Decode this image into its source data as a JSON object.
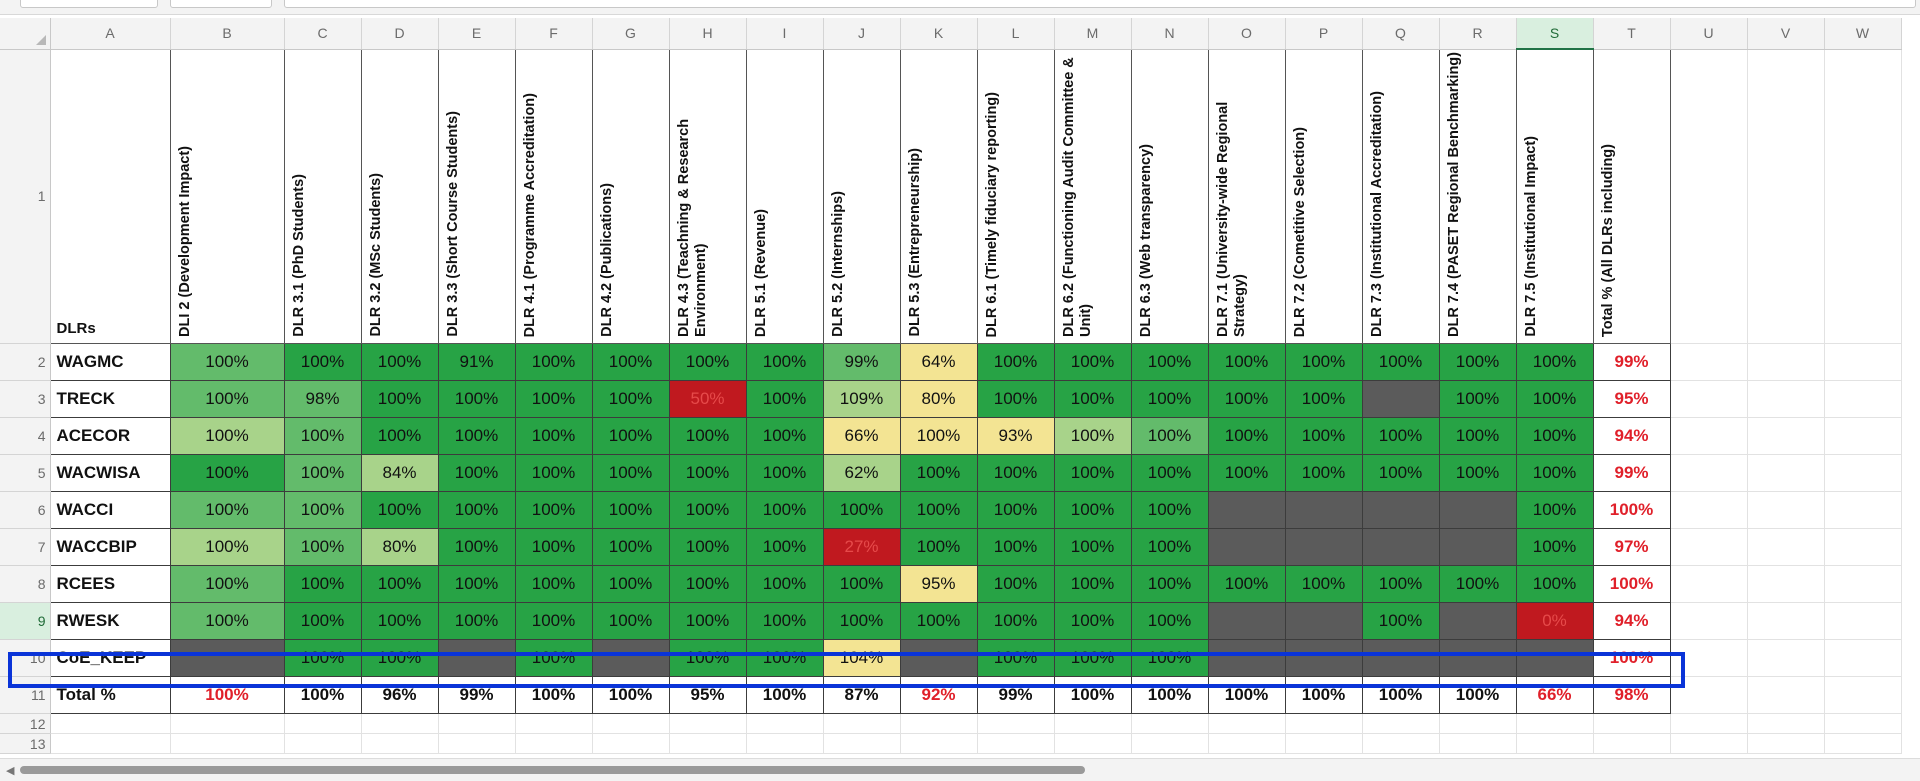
{
  "col_letters": [
    "A",
    "B",
    "C",
    "D",
    "E",
    "F",
    "G",
    "H",
    "I",
    "J",
    "K",
    "L",
    "M",
    "N",
    "O",
    "P",
    "Q",
    "R",
    "S",
    "T",
    "U",
    "V",
    "W"
  ],
  "header_corner": "DLRs",
  "headers": [
    "DLI 2 (Development Impact)",
    "DLR 3.1 (PhD Students)",
    "DLR 3.2 (MSc Students)",
    "DLR 3.3 (Short Course Students)",
    "DLR 4.1 (Programme Accreditation)",
    "DLR 4.2 (Publications)",
    "DLR 4.3 (Teachning & Research Environment)",
    "DLR 5.1 (Revenue)",
    "DLR 5.2 (Internships)",
    "DLR 5.3 (Entrepreneurship)",
    "DLR 6.1 (Timely fiduciary reporting)",
    "DLR 6.2 (Functioning Audit Committee & Unit)",
    "DLR 6.3 (Web transparency)",
    "DLR 7.1 (University-wide Regional Strategy)",
    "DLR 7.2 (Cometitive Selection)",
    "DLR 7.3 (Institutional Accreditation)",
    "DLR 7.4 (PASET Regional Benchmarking)",
    "DLR 7.5 (Institutional Impact)",
    "Total % (All DLRs including)"
  ],
  "rows": [
    {
      "num": "2",
      "name": "WAGMC",
      "total": "99%",
      "cells": [
        [
          "100%",
          "g-med"
        ],
        [
          "100%",
          "g-dark"
        ],
        [
          "100%",
          "g-dark"
        ],
        [
          "91%",
          "g-dark"
        ],
        [
          "100%",
          "g-dark"
        ],
        [
          "100%",
          "g-dark"
        ],
        [
          "100%",
          "g-dark"
        ],
        [
          "100%",
          "g-dark"
        ],
        [
          "99%",
          "g-med"
        ],
        [
          "64%",
          "y-pale"
        ],
        [
          "100%",
          "g-dark"
        ],
        [
          "100%",
          "g-dark"
        ],
        [
          "100%",
          "g-dark"
        ],
        [
          "100%",
          "g-dark"
        ],
        [
          "100%",
          "g-dark"
        ],
        [
          "100%",
          "g-dark"
        ],
        [
          "100%",
          "g-dark"
        ],
        [
          "100%",
          "g-dark"
        ]
      ]
    },
    {
      "num": "3",
      "name": "TRECK",
      "total": "95%",
      "cells": [
        [
          "100%",
          "g-med"
        ],
        [
          "98%",
          "g-med"
        ],
        [
          "100%",
          "g-dark"
        ],
        [
          "100%",
          "g-dark"
        ],
        [
          "100%",
          "g-dark"
        ],
        [
          "100%",
          "g-dark"
        ],
        [
          "50%",
          "r-bad"
        ],
        [
          "100%",
          "g-dark"
        ],
        [
          "109%",
          "g-light"
        ],
        [
          "80%",
          "y-pale"
        ],
        [
          "100%",
          "g-dark"
        ],
        [
          "100%",
          "g-dark"
        ],
        [
          "100%",
          "g-dark"
        ],
        [
          "100%",
          "g-dark"
        ],
        [
          "100%",
          "g-dark"
        ],
        [
          "",
          "gray"
        ],
        [
          "100%",
          "g-dark"
        ],
        [
          "100%",
          "g-dark"
        ]
      ]
    },
    {
      "num": "4",
      "name": "ACECOR",
      "total": "94%",
      "cells": [
        [
          "100%",
          "g-light"
        ],
        [
          "100%",
          "g-med"
        ],
        [
          "100%",
          "g-dark"
        ],
        [
          "100%",
          "g-dark"
        ],
        [
          "100%",
          "g-dark"
        ],
        [
          "100%",
          "g-dark"
        ],
        [
          "100%",
          "g-dark"
        ],
        [
          "100%",
          "g-dark"
        ],
        [
          "66%",
          "y-pale"
        ],
        [
          "100%",
          "y-pale"
        ],
        [
          "93%",
          "y-pale"
        ],
        [
          "100%",
          "g-light"
        ],
        [
          "100%",
          "g-med"
        ],
        [
          "100%",
          "g-dark"
        ],
        [
          "100%",
          "g-dark"
        ],
        [
          "100%",
          "g-dark"
        ],
        [
          "100%",
          "g-dark"
        ],
        [
          "100%",
          "g-dark"
        ]
      ]
    },
    {
      "num": "5",
      "name": "WACWISA",
      "total": "99%",
      "cells": [
        [
          "100%",
          "g-dark"
        ],
        [
          "100%",
          "g-med"
        ],
        [
          "84%",
          "g-light"
        ],
        [
          "100%",
          "g-dark"
        ],
        [
          "100%",
          "g-dark"
        ],
        [
          "100%",
          "g-dark"
        ],
        [
          "100%",
          "g-dark"
        ],
        [
          "100%",
          "g-dark"
        ],
        [
          "62%",
          "g-light"
        ],
        [
          "100%",
          "g-dark"
        ],
        [
          "100%",
          "g-dark"
        ],
        [
          "100%",
          "g-dark"
        ],
        [
          "100%",
          "g-dark"
        ],
        [
          "100%",
          "g-dark"
        ],
        [
          "100%",
          "g-dark"
        ],
        [
          "100%",
          "g-dark"
        ],
        [
          "100%",
          "g-dark"
        ],
        [
          "100%",
          "g-dark"
        ]
      ]
    },
    {
      "num": "6",
      "name": "WACCI",
      "total": "100%",
      "cells": [
        [
          "100%",
          "g-med"
        ],
        [
          "100%",
          "g-med"
        ],
        [
          "100%",
          "g-dark"
        ],
        [
          "100%",
          "g-dark"
        ],
        [
          "100%",
          "g-dark"
        ],
        [
          "100%",
          "g-dark"
        ],
        [
          "100%",
          "g-dark"
        ],
        [
          "100%",
          "g-dark"
        ],
        [
          "100%",
          "g-dark"
        ],
        [
          "100%",
          "g-dark"
        ],
        [
          "100%",
          "g-dark"
        ],
        [
          "100%",
          "g-dark"
        ],
        [
          "100%",
          "g-dark"
        ],
        [
          "",
          "gray"
        ],
        [
          "",
          "gray"
        ],
        [
          "",
          "gray"
        ],
        [
          "",
          "gray"
        ],
        [
          "100%",
          "g-dark"
        ]
      ]
    },
    {
      "num": "7",
      "name": "WACCBIP",
      "total": "97%",
      "cells": [
        [
          "100%",
          "g-light"
        ],
        [
          "100%",
          "g-med"
        ],
        [
          "80%",
          "g-light"
        ],
        [
          "100%",
          "g-dark"
        ],
        [
          "100%",
          "g-dark"
        ],
        [
          "100%",
          "g-dark"
        ],
        [
          "100%",
          "g-dark"
        ],
        [
          "100%",
          "g-dark"
        ],
        [
          "27%",
          "r-bad"
        ],
        [
          "100%",
          "g-dark"
        ],
        [
          "100%",
          "g-dark"
        ],
        [
          "100%",
          "g-dark"
        ],
        [
          "100%",
          "g-dark"
        ],
        [
          "",
          "gray"
        ],
        [
          "",
          "gray"
        ],
        [
          "",
          "gray"
        ],
        [
          "",
          "gray"
        ],
        [
          "100%",
          "g-dark"
        ]
      ]
    },
    {
      "num": "8",
      "name": "RCEES",
      "total": "100%",
      "cells": [
        [
          "100%",
          "g-med"
        ],
        [
          "100%",
          "g-dark"
        ],
        [
          "100%",
          "g-dark"
        ],
        [
          "100%",
          "g-dark"
        ],
        [
          "100%",
          "g-dark"
        ],
        [
          "100%",
          "g-dark"
        ],
        [
          "100%",
          "g-dark"
        ],
        [
          "100%",
          "g-dark"
        ],
        [
          "100%",
          "g-dark"
        ],
        [
          "95%",
          "y-pale"
        ],
        [
          "100%",
          "g-dark"
        ],
        [
          "100%",
          "g-dark"
        ],
        [
          "100%",
          "g-dark"
        ],
        [
          "100%",
          "g-dark"
        ],
        [
          "100%",
          "g-dark"
        ],
        [
          "100%",
          "g-dark"
        ],
        [
          "100%",
          "g-dark"
        ],
        [
          "100%",
          "g-dark"
        ]
      ]
    },
    {
      "num": "9",
      "name": "RWESK",
      "total": "94%",
      "cells": [
        [
          "100%",
          "g-med"
        ],
        [
          "100%",
          "g-dark"
        ],
        [
          "100%",
          "g-dark"
        ],
        [
          "100%",
          "g-dark"
        ],
        [
          "100%",
          "g-dark"
        ],
        [
          "100%",
          "g-dark"
        ],
        [
          "100%",
          "g-dark"
        ],
        [
          "100%",
          "g-dark"
        ],
        [
          "100%",
          "g-dark"
        ],
        [
          "100%",
          "g-dark"
        ],
        [
          "100%",
          "g-dark"
        ],
        [
          "100%",
          "g-dark"
        ],
        [
          "100%",
          "g-dark"
        ],
        [
          "",
          "gray"
        ],
        [
          "",
          "gray"
        ],
        [
          "100%",
          "g-dark"
        ],
        [
          "",
          "gray"
        ],
        [
          "0%",
          "r-bad"
        ]
      ]
    },
    {
      "num": "10",
      "name": "CoE_KEEP",
      "total": "100%",
      "cells": [
        [
          "",
          "gray"
        ],
        [
          "100%",
          "g-dark"
        ],
        [
          "100%",
          "g-dark"
        ],
        [
          "",
          "gray"
        ],
        [
          "100%",
          "g-dark"
        ],
        [
          "",
          "gray"
        ],
        [
          "100%",
          "g-dark"
        ],
        [
          "100%",
          "g-dark"
        ],
        [
          "104%",
          "y-pale"
        ],
        [
          "",
          "gray"
        ],
        [
          "100%",
          "g-dark"
        ],
        [
          "100%",
          "g-dark"
        ],
        [
          "100%",
          "g-dark"
        ],
        [
          "",
          "gray"
        ],
        [
          "",
          "gray"
        ],
        [
          "",
          "gray"
        ],
        [
          "",
          "gray"
        ],
        [
          "",
          "gray"
        ]
      ]
    }
  ],
  "totals": {
    "num": "11",
    "label": "Total %",
    "cells": [
      [
        "100%",
        "red"
      ],
      [
        "100%",
        ""
      ],
      [
        "96%",
        ""
      ],
      [
        "99%",
        ""
      ],
      [
        "100%",
        ""
      ],
      [
        "100%",
        ""
      ],
      [
        "95%",
        ""
      ],
      [
        "100%",
        ""
      ],
      [
        "87%",
        ""
      ],
      [
        "92%",
        "red"
      ],
      [
        "99%",
        ""
      ],
      [
        "100%",
        ""
      ],
      [
        "100%",
        ""
      ],
      [
        "100%",
        ""
      ],
      [
        "100%",
        ""
      ],
      [
        "100%",
        ""
      ],
      [
        "100%",
        ""
      ],
      [
        "66%",
        "red"
      ]
    ],
    "total": "98%"
  },
  "empty_rows": [
    "12",
    "13"
  ],
  "selected_column": "S",
  "selected_row": "9",
  "selection_color": "#0a34d8"
}
